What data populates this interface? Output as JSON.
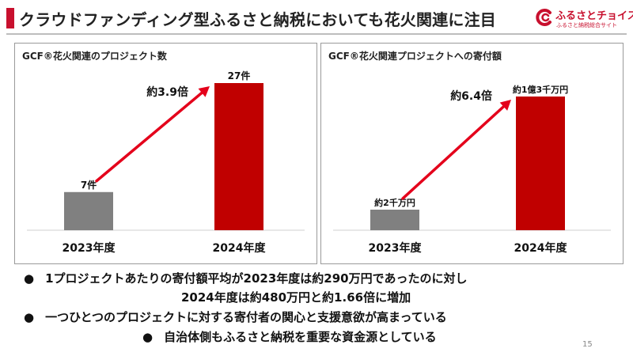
{
  "header": {
    "title": "クラウドファンディング型ふるさと納税においても花火関連に注目"
  },
  "logo": {
    "name": "ふるさとチョイス",
    "tagline": "ふるさと納税総合サイト"
  },
  "chart_data": [
    {
      "type": "bar",
      "title": "GCF®花火関連のプロジェクト数",
      "categories": [
        "2023年度",
        "2024年度"
      ],
      "values": [
        7,
        27
      ],
      "data_labels": [
        "7件",
        "27件"
      ],
      "annotation": "約3.9倍",
      "colors": [
        "#808080",
        "#c00000"
      ],
      "grid": false
    },
    {
      "type": "bar",
      "title": "GCF®花火関連プロジェクトへの寄付額",
      "categories": [
        "2023年度",
        "2024年度"
      ],
      "values": [
        20000000,
        130000000
      ],
      "data_labels": [
        "約2千万円",
        "約1億3千万円"
      ],
      "annotation": "約6.4倍",
      "colors": [
        "#808080",
        "#c00000"
      ],
      "grid": false
    }
  ],
  "bullets": {
    "b1_line1": "1プロジェクトあたりの寄付額平均が2023年度は約290万円であったのに対し",
    "b1_line2": "2024年度は約480万円と約1.66倍に増加",
    "b2": "一つひとつのプロジェクトに対する寄付者の関心と支援意欲が高まっている",
    "b3": "自治体側もふるさと納税を重要な資金源としている",
    "marker": "●"
  },
  "page_number": "15"
}
